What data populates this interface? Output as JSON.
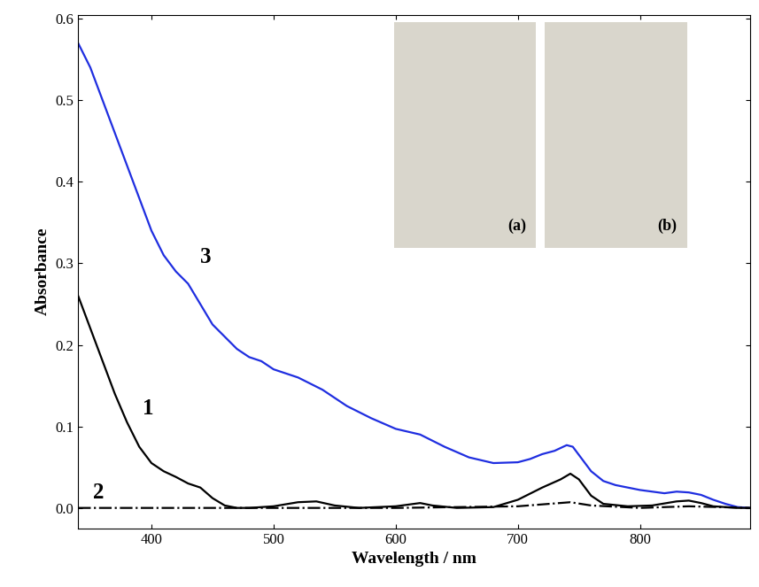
{
  "chart_data": {
    "type": "line",
    "x_label": "Wavelength / nm",
    "y_label": "Absorbance",
    "xlim": [
      340,
      890
    ],
    "xticks": [
      400,
      500,
      600,
      700,
      800
    ],
    "ylim": [
      -0.025,
      0.605
    ],
    "yticks": [
      0.0,
      0.1,
      0.2,
      0.3,
      0.4,
      0.5,
      0.6
    ],
    "series": [
      {
        "name": "3",
        "color": "#1f2ee0",
        "line_style": "solid",
        "x": [
          340,
          350,
          360,
          370,
          380,
          390,
          400,
          410,
          420,
          430,
          440,
          450,
          460,
          470,
          480,
          490,
          500,
          520,
          540,
          560,
          580,
          600,
          620,
          640,
          660,
          680,
          700,
          710,
          720,
          730,
          740,
          745,
          750,
          760,
          770,
          780,
          800,
          820,
          830,
          840,
          850,
          860,
          870,
          880,
          890
        ],
        "values": [
          0.57,
          0.54,
          0.5,
          0.46,
          0.42,
          0.38,
          0.34,
          0.31,
          0.29,
          0.275,
          0.25,
          0.225,
          0.21,
          0.195,
          0.185,
          0.18,
          0.17,
          0.16,
          0.145,
          0.125,
          0.11,
          0.097,
          0.09,
          0.075,
          0.062,
          0.055,
          0.056,
          0.06,
          0.066,
          0.07,
          0.077,
          0.075,
          0.065,
          0.045,
          0.033,
          0.028,
          0.022,
          0.018,
          0.02,
          0.019,
          0.016,
          0.01,
          0.005,
          0.001,
          0.0
        ]
      },
      {
        "name": "1",
        "color": "#000000",
        "line_style": "solid",
        "x": [
          340,
          350,
          360,
          370,
          380,
          390,
          400,
          410,
          420,
          430,
          440,
          450,
          460,
          470,
          480,
          500,
          520,
          535,
          550,
          570,
          600,
          620,
          630,
          650,
          680,
          700,
          720,
          735,
          743,
          750,
          760,
          770,
          790,
          810,
          830,
          840,
          850,
          860,
          880,
          890
        ],
        "values": [
          0.26,
          0.22,
          0.18,
          0.14,
          0.105,
          0.075,
          0.055,
          0.045,
          0.038,
          0.03,
          0.025,
          0.012,
          0.003,
          0.0,
          0.0,
          0.002,
          0.007,
          0.008,
          0.003,
          0.0,
          0.002,
          0.006,
          0.003,
          0.0,
          0.001,
          0.01,
          0.025,
          0.035,
          0.042,
          0.035,
          0.015,
          0.005,
          0.002,
          0.003,
          0.008,
          0.009,
          0.006,
          0.002,
          0.0,
          0.0
        ]
      },
      {
        "name": "2",
        "color": "#000000",
        "line_style": "dashdot",
        "x": [
          340,
          400,
          500,
          600,
          700,
          743,
          760,
          800,
          840,
          890
        ],
        "values": [
          0.0,
          0.0,
          0.0,
          0.0,
          0.002,
          0.007,
          0.003,
          0.0,
          0.002,
          0.0
        ]
      }
    ],
    "insets": [
      "(a)",
      "(b)"
    ]
  }
}
